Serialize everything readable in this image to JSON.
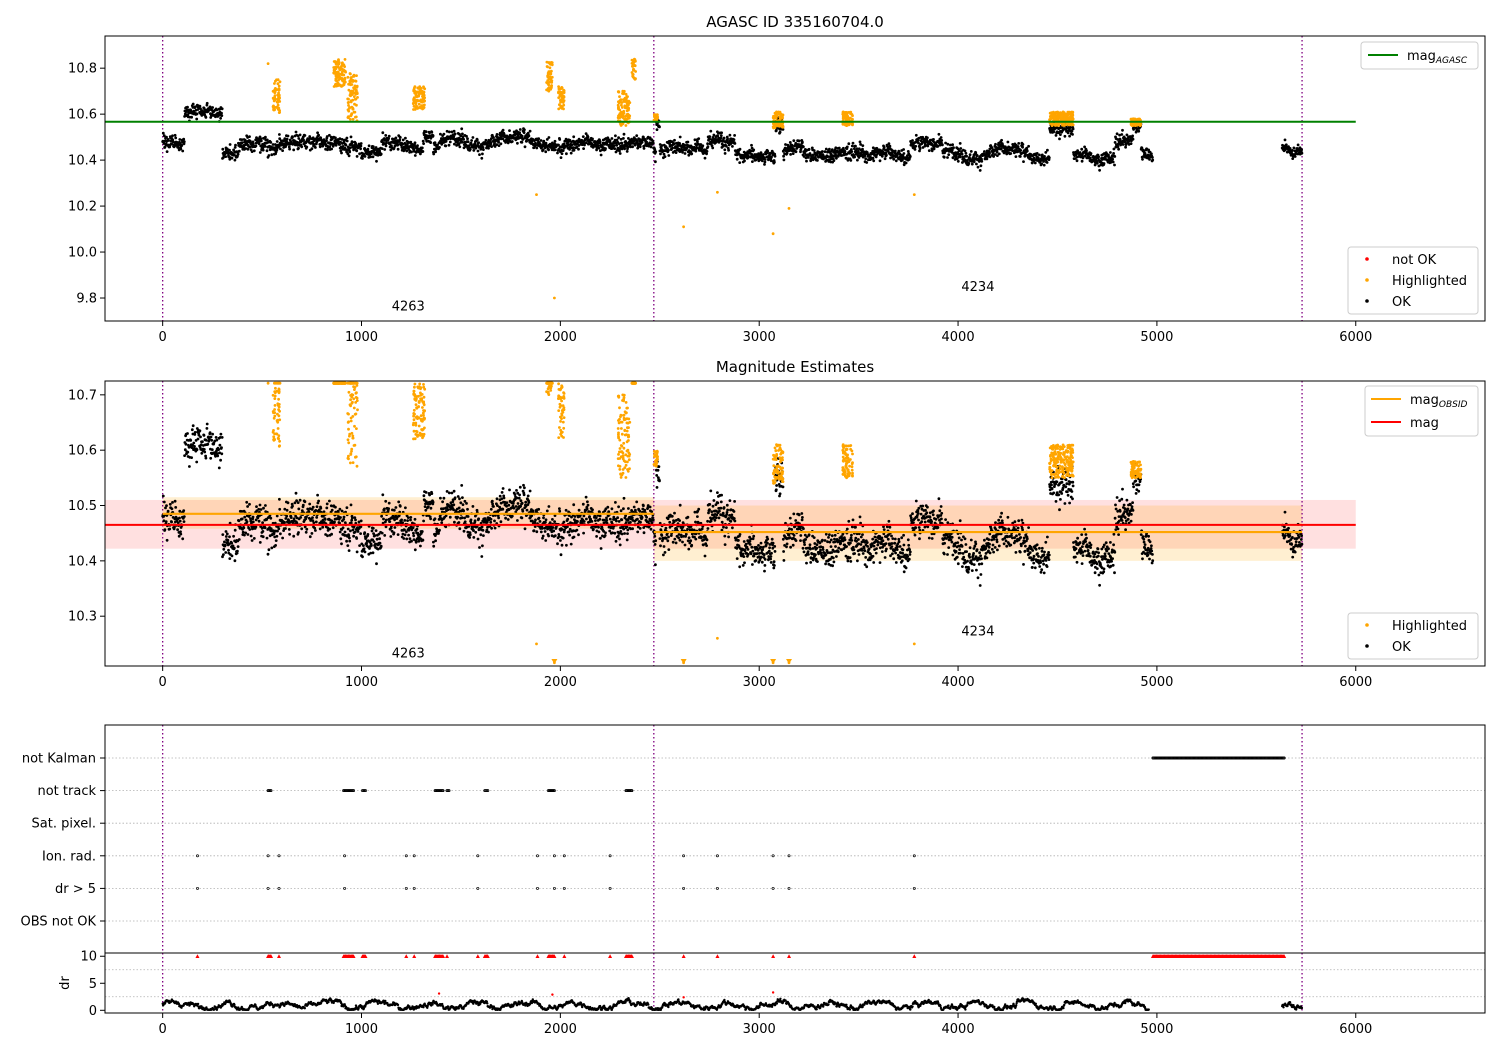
{
  "chart_data": [
    {
      "type": "scatter",
      "title": "AGASC ID 335160704.0",
      "xlim": [
        -290,
        6650
      ],
      "ylim": [
        9.7,
        10.94
      ],
      "xticks": [
        0,
        1000,
        2000,
        3000,
        4000,
        5000,
        6000
      ],
      "yticks": [
        9.8,
        10.0,
        10.2,
        10.4,
        10.6,
        10.8
      ],
      "ytick_labels": [
        "9.8",
        "10.0",
        "10.2",
        "10.4",
        "10.6",
        "10.8"
      ],
      "obs_boundaries": [
        0,
        2470,
        5730
      ],
      "obs_labels": [
        {
          "text": "4263",
          "x": 1235,
          "y": 9.745
        },
        {
          "text": "4234",
          "x": 4100,
          "y": 9.83
        }
      ],
      "lines": [
        {
          "name": "mag",
          "subscript": "AGASC",
          "color": "#008000",
          "y": 10.567,
          "x": [
            -290,
            6000
          ]
        }
      ],
      "segments": [
        {
          "x": [
            0,
            2470
          ],
          "mean": 10.485,
          "spread": 0.028,
          "reg": [
            [
              110,
              300,
              10.62
            ],
            [
              300,
              380,
              10.44
            ],
            [
              1000,
              1100,
              10.44
            ],
            [
              1310,
              1360,
              10.52
            ]
          ]
        },
        {
          "x": [
            2470,
            4980
          ],
          "mean": 10.43,
          "spread": 0.028,
          "reg": [
            [
              2480,
              2500,
              10.56
            ],
            [
              2740,
              2880,
              10.48
            ],
            [
              3080,
              3120,
              10.55
            ],
            [
              3220,
              3380,
              10.41
            ],
            [
              3760,
              3920,
              10.48
            ],
            [
              4460,
              4580,
              10.545
            ],
            [
              4790,
              4880,
              10.49
            ],
            [
              4880,
              4920,
              10.55
            ]
          ]
        },
        {
          "x": [
            5630,
            5730
          ],
          "mean": 10.44,
          "spread": 0.02,
          "reg": []
        }
      ],
      "highlighted_clusters": [
        [
          555,
          590,
          10.6,
          10.75
        ],
        [
          860,
          920,
          10.72,
          10.84
        ],
        [
          930,
          980,
          10.57,
          10.78
        ],
        [
          1260,
          1320,
          10.62,
          10.72
        ],
        [
          1930,
          1960,
          10.7,
          10.83
        ],
        [
          1990,
          2020,
          10.62,
          10.72
        ],
        [
          2290,
          2350,
          10.55,
          10.7
        ],
        [
          2360,
          2380,
          10.75,
          10.84
        ],
        [
          2470,
          2490,
          10.57,
          10.6
        ],
        [
          3070,
          3120,
          10.54,
          10.61
        ],
        [
          3420,
          3470,
          10.55,
          10.61
        ],
        [
          4460,
          4580,
          10.55,
          10.61
        ],
        [
          4870,
          4920,
          10.55,
          10.58
        ]
      ],
      "highlighted_points": [
        [
          530,
          10.82
        ],
        [
          1880,
          10.25
        ],
        [
          1970,
          9.8
        ],
        [
          2620,
          10.11
        ],
        [
          2790,
          10.26
        ],
        [
          3070,
          10.08
        ],
        [
          3150,
          10.19
        ],
        [
          3780,
          10.25
        ]
      ],
      "legend": [
        {
          "label": "not OK",
          "color": "#ff0000",
          "marker": "point"
        },
        {
          "label": "Highlighted",
          "color": "#ffa500",
          "marker": "point"
        },
        {
          "label": "OK",
          "color": "#000000",
          "marker": "point"
        }
      ],
      "legend_line_placement": "top-right",
      "legend_marker_placement": "lower-right"
    },
    {
      "type": "scatter",
      "title": "Magnitude Estimates",
      "xlim": [
        -290,
        6650
      ],
      "ylim": [
        10.21,
        10.725
      ],
      "xticks": [
        0,
        1000,
        2000,
        3000,
        4000,
        5000,
        6000
      ],
      "yticks": [
        10.3,
        10.4,
        10.5,
        10.6,
        10.7
      ],
      "ytick_labels": [
        "10.3",
        "10.4",
        "10.5",
        "10.6",
        "10.7"
      ],
      "obs_boundaries": [
        0,
        2470,
        5730
      ],
      "obs_labels": [
        {
          "text": "4263",
          "x": 1235,
          "y": 10.225
        },
        {
          "text": "4234",
          "x": 4100,
          "y": 10.265
        }
      ],
      "mag": {
        "name": "mag",
        "color": "#ff0000",
        "value": 10.465,
        "band": [
          10.422,
          10.51
        ],
        "x": [
          -290,
          6000
        ]
      },
      "mag_obsid": [
        {
          "x": [
            0,
            2470
          ],
          "value": 10.485,
          "band": [
            10.458,
            10.515
          ]
        },
        {
          "x": [
            2470,
            5730
          ],
          "value": 10.452,
          "band": [
            10.4,
            10.5
          ]
        }
      ],
      "mag_obsid_color": "#ffa500",
      "legend_line": [
        {
          "label": "mag",
          "subscript": "OBSID",
          "color": "#ffa500"
        },
        {
          "label": "mag",
          "subscript": "",
          "color": "#ff0000"
        }
      ],
      "legend_marker": [
        {
          "label": "Highlighted",
          "color": "#ffa500",
          "marker": "point"
        },
        {
          "label": "OK",
          "color": "#000000",
          "marker": "point"
        }
      ],
      "clipped_low_x": [
        1970,
        2620,
        3070,
        3150
      ],
      "legend_line_placement": "top-right",
      "legend_marker_placement": "lower-right"
    },
    {
      "type": "scatter",
      "title": "",
      "xlim": [
        -290,
        6650
      ],
      "xticks": [
        0,
        1000,
        2000,
        3000,
        4000,
        5000,
        6000
      ],
      "obs_boundaries": [
        0,
        2470,
        5730
      ],
      "flag_rows": [
        "not Kalman",
        "not track",
        "Sat. pixel.",
        "Ion. rad.",
        "dr > 5",
        "OBS not OK"
      ],
      "flags": {
        "not Kalman": [
          [
            4980,
            5640
          ]
        ],
        "not track": [
          [
            530,
            545
          ],
          [
            910,
            960
          ],
          [
            1005,
            1020
          ],
          [
            1370,
            1410
          ],
          [
            1430,
            1440
          ],
          [
            1620,
            1635
          ],
          [
            1940,
            1970
          ],
          [
            2330,
            2360
          ]
        ],
        "Sat. pixel.": [],
        "Ion. rad.": [
          175,
          530,
          585,
          915,
          1225,
          1265,
          1585,
          1885,
          1970,
          2020,
          2250,
          2620,
          2790,
          3070,
          3150,
          3780
        ],
        "dr > 5": [
          175,
          530,
          585,
          915,
          1225,
          1265,
          1585,
          1885,
          1970,
          2020,
          2250,
          2620,
          2790,
          3070,
          3150,
          3780
        ],
        "OBS not OK": []
      },
      "dr": {
        "ylabel": "dr",
        "ylim": [
          -0.5,
          10.6
        ],
        "yticks": [
          0,
          5,
          10
        ],
        "ytick_labels": [
          "0",
          "5",
          "10"
        ],
        "clip": 10,
        "red_ranges": [
          [
            530,
            545
          ],
          [
            910,
            960
          ],
          [
            1005,
            1020
          ],
          [
            1370,
            1410
          ],
          [
            1620,
            1635
          ],
          [
            1940,
            1970
          ],
          [
            2330,
            2360
          ],
          [
            4980,
            5640
          ]
        ],
        "red_points": [
          175,
          585,
          1225,
          1265,
          1430,
          1585,
          1885,
          2020,
          2250,
          2620,
          2790,
          3070,
          3150,
          3780
        ],
        "outliers": [
          [
            1390,
            3.1
          ],
          [
            1960,
            2.9
          ],
          [
            2620,
            2.4
          ],
          [
            3070,
            3.3
          ]
        ],
        "black_ranges": [
          [
            0,
            4960
          ],
          [
            5630,
            5730
          ]
        ]
      }
    }
  ]
}
